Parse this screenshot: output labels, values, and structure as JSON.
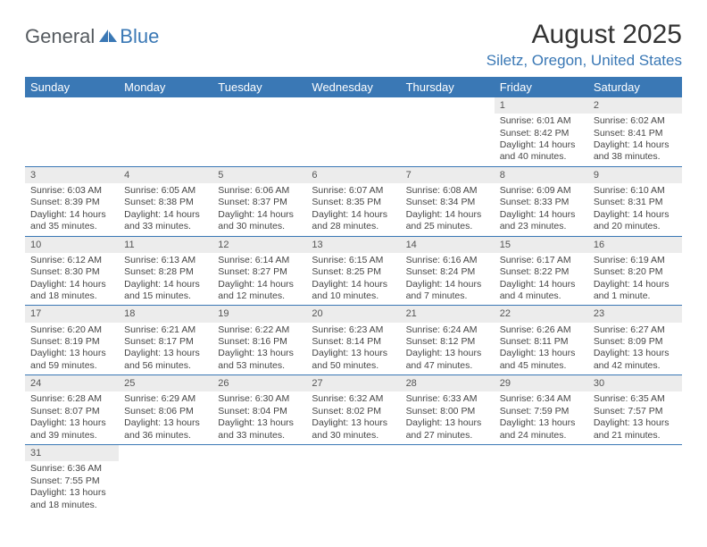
{
  "logo": {
    "general": "General",
    "blue": "Blue"
  },
  "title": "August 2025",
  "location": "Siletz, Oregon, United States",
  "colors": {
    "header_bg": "#3a78b5",
    "header_text": "#ffffff",
    "daynum_bg": "#ececec",
    "border": "#3a78b5",
    "accent": "#3a78b5",
    "body_text": "#464646",
    "logo_gray": "#555a5f"
  },
  "weekdays": [
    "Sunday",
    "Monday",
    "Tuesday",
    "Wednesday",
    "Thursday",
    "Friday",
    "Saturday"
  ],
  "font": {
    "day_fontsize": 10.5,
    "header_fontsize": 13,
    "title_fontsize": 30,
    "location_fontsize": 17
  },
  "grid": {
    "cols": 7,
    "rows": 6,
    "first_weekday_index": 5,
    "days_in_month": 31
  },
  "days": [
    {
      "n": 1,
      "sunrise": "6:01 AM",
      "sunset": "8:42 PM",
      "dl_h": 14,
      "dl_m": 40
    },
    {
      "n": 2,
      "sunrise": "6:02 AM",
      "sunset": "8:41 PM",
      "dl_h": 14,
      "dl_m": 38
    },
    {
      "n": 3,
      "sunrise": "6:03 AM",
      "sunset": "8:39 PM",
      "dl_h": 14,
      "dl_m": 35
    },
    {
      "n": 4,
      "sunrise": "6:05 AM",
      "sunset": "8:38 PM",
      "dl_h": 14,
      "dl_m": 33
    },
    {
      "n": 5,
      "sunrise": "6:06 AM",
      "sunset": "8:37 PM",
      "dl_h": 14,
      "dl_m": 30
    },
    {
      "n": 6,
      "sunrise": "6:07 AM",
      "sunset": "8:35 PM",
      "dl_h": 14,
      "dl_m": 28
    },
    {
      "n": 7,
      "sunrise": "6:08 AM",
      "sunset": "8:34 PM",
      "dl_h": 14,
      "dl_m": 25
    },
    {
      "n": 8,
      "sunrise": "6:09 AM",
      "sunset": "8:33 PM",
      "dl_h": 14,
      "dl_m": 23
    },
    {
      "n": 9,
      "sunrise": "6:10 AM",
      "sunset": "8:31 PM",
      "dl_h": 14,
      "dl_m": 20
    },
    {
      "n": 10,
      "sunrise": "6:12 AM",
      "sunset": "8:30 PM",
      "dl_h": 14,
      "dl_m": 18
    },
    {
      "n": 11,
      "sunrise": "6:13 AM",
      "sunset": "8:28 PM",
      "dl_h": 14,
      "dl_m": 15
    },
    {
      "n": 12,
      "sunrise": "6:14 AM",
      "sunset": "8:27 PM",
      "dl_h": 14,
      "dl_m": 12
    },
    {
      "n": 13,
      "sunrise": "6:15 AM",
      "sunset": "8:25 PM",
      "dl_h": 14,
      "dl_m": 10
    },
    {
      "n": 14,
      "sunrise": "6:16 AM",
      "sunset": "8:24 PM",
      "dl_h": 14,
      "dl_m": 7
    },
    {
      "n": 15,
      "sunrise": "6:17 AM",
      "sunset": "8:22 PM",
      "dl_h": 14,
      "dl_m": 4
    },
    {
      "n": 16,
      "sunrise": "6:19 AM",
      "sunset": "8:20 PM",
      "dl_h": 14,
      "dl_m": 1
    },
    {
      "n": 17,
      "sunrise": "6:20 AM",
      "sunset": "8:19 PM",
      "dl_h": 13,
      "dl_m": 59
    },
    {
      "n": 18,
      "sunrise": "6:21 AM",
      "sunset": "8:17 PM",
      "dl_h": 13,
      "dl_m": 56
    },
    {
      "n": 19,
      "sunrise": "6:22 AM",
      "sunset": "8:16 PM",
      "dl_h": 13,
      "dl_m": 53
    },
    {
      "n": 20,
      "sunrise": "6:23 AM",
      "sunset": "8:14 PM",
      "dl_h": 13,
      "dl_m": 50
    },
    {
      "n": 21,
      "sunrise": "6:24 AM",
      "sunset": "8:12 PM",
      "dl_h": 13,
      "dl_m": 47
    },
    {
      "n": 22,
      "sunrise": "6:26 AM",
      "sunset": "8:11 PM",
      "dl_h": 13,
      "dl_m": 45
    },
    {
      "n": 23,
      "sunrise": "6:27 AM",
      "sunset": "8:09 PM",
      "dl_h": 13,
      "dl_m": 42
    },
    {
      "n": 24,
      "sunrise": "6:28 AM",
      "sunset": "8:07 PM",
      "dl_h": 13,
      "dl_m": 39
    },
    {
      "n": 25,
      "sunrise": "6:29 AM",
      "sunset": "8:06 PM",
      "dl_h": 13,
      "dl_m": 36
    },
    {
      "n": 26,
      "sunrise": "6:30 AM",
      "sunset": "8:04 PM",
      "dl_h": 13,
      "dl_m": 33
    },
    {
      "n": 27,
      "sunrise": "6:32 AM",
      "sunset": "8:02 PM",
      "dl_h": 13,
      "dl_m": 30
    },
    {
      "n": 28,
      "sunrise": "6:33 AM",
      "sunset": "8:00 PM",
      "dl_h": 13,
      "dl_m": 27
    },
    {
      "n": 29,
      "sunrise": "6:34 AM",
      "sunset": "7:59 PM",
      "dl_h": 13,
      "dl_m": 24
    },
    {
      "n": 30,
      "sunrise": "6:35 AM",
      "sunset": "7:57 PM",
      "dl_h": 13,
      "dl_m": 21
    },
    {
      "n": 31,
      "sunrise": "6:36 AM",
      "sunset": "7:55 PM",
      "dl_h": 13,
      "dl_m": 18
    }
  ],
  "labels": {
    "sunrise": "Sunrise:",
    "sunset": "Sunset:",
    "daylight_prefix": "Daylight:",
    "hours_word": "hours",
    "hour_word": "hour",
    "minutes_word": "minutes.",
    "minute_word": "minute.",
    "and": "and"
  }
}
